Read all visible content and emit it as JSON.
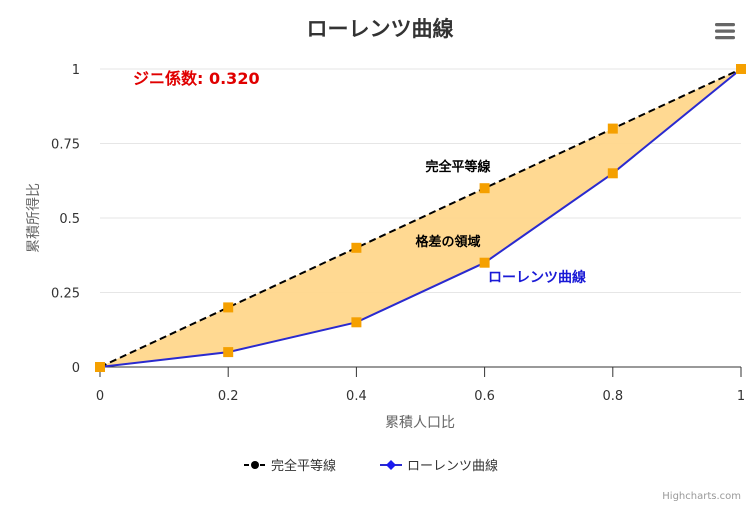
{
  "chart_data": {
    "type": "line",
    "title": "ローレンツ曲線",
    "xlabel": "累積人口比",
    "ylabel": "累積所得比",
    "xlim": [
      0,
      1
    ],
    "ylim": [
      0,
      1
    ],
    "x_ticks": [
      "0",
      "0.2",
      "0.4",
      "0.6",
      "0.8",
      "1"
    ],
    "y_ticks": [
      "0",
      "0.25",
      "0.5",
      "0.75",
      "1"
    ],
    "grid": true,
    "legend_position": "bottom-center",
    "series": [
      {
        "name": "完全平等線",
        "style": "dashed",
        "color": "#000000",
        "marker_legend": "circle",
        "x": [
          0,
          0.2,
          0.4,
          0.6,
          0.8,
          1
        ],
        "y": [
          0,
          0.2,
          0.4,
          0.6,
          0.8,
          1
        ]
      },
      {
        "name": "ローレンツ曲線",
        "style": "solid",
        "color": "#2a2acf",
        "marker_legend": "diamond",
        "x": [
          0,
          0.2,
          0.4,
          0.6,
          0.8,
          1
        ],
        "y": [
          0,
          0.05,
          0.15,
          0.35,
          0.65,
          1
        ]
      }
    ],
    "marker_color": "#f5a000",
    "area_fill_color": "#ffd78c",
    "annotations": [
      {
        "text": "ジニ係数: 0.320",
        "color": "#e00000"
      },
      {
        "text": "完全平等線",
        "color": "#000000"
      },
      {
        "text": "格差の領域",
        "color": "#000000"
      },
      {
        "text": "ローレンツ曲線",
        "color": "#1a1ad6"
      }
    ]
  },
  "menu_icon": "hamburger-menu-icon",
  "credits": "Highcharts.com"
}
